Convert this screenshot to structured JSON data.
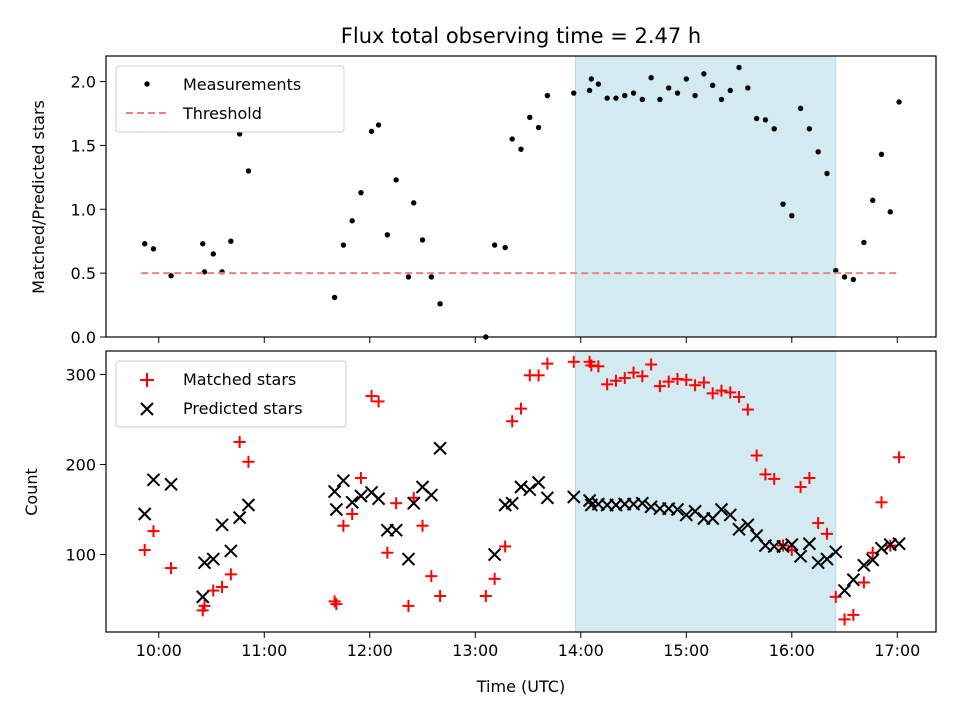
{
  "chart_data": [
    {
      "type": "scatter",
      "title": "Flux total observing time = 2.47 h",
      "ylabel": "Matched/Predicted stars",
      "xlabel": "",
      "xlim": [
        "09:30",
        "17:22"
      ],
      "ylim": [
        0,
        2.2
      ],
      "yticks": [
        "0.0",
        "0.5",
        "1.0",
        "1.5",
        "2.0"
      ],
      "xticks": [
        "10:00",
        "11:00",
        "12:00",
        "13:00",
        "14:00",
        "15:00",
        "16:00",
        "17:00"
      ],
      "shaded_interval": {
        "start": "13:57",
        "end": "16:25",
        "color": "#d4eaf1"
      },
      "legend_position": "upper left",
      "series": [
        {
          "name": "Measurements",
          "marker": "dot",
          "color": "#000000",
          "points": [
            [
              "09:52",
              0.73
            ],
            [
              "09:57",
              0.69
            ],
            [
              "10:07",
              0.48
            ],
            [
              "10:25",
              0.73
            ],
            [
              "10:26",
              0.51
            ],
            [
              "10:31",
              0.65
            ],
            [
              "10:36",
              0.51
            ],
            [
              "10:41",
              0.75
            ],
            [
              "10:46",
              1.59
            ],
            [
              "10:51",
              1.3
            ],
            [
              "11:40",
              0.31
            ],
            [
              "11:45",
              0.72
            ],
            [
              "11:50",
              0.91
            ],
            [
              "11:55",
              1.13
            ],
            [
              "12:01",
              1.61
            ],
            [
              "12:05",
              1.66
            ],
            [
              "12:10",
              0.8
            ],
            [
              "12:15",
              1.23
            ],
            [
              "12:22",
              0.47
            ],
            [
              "12:25",
              1.05
            ],
            [
              "12:30",
              0.76
            ],
            [
              "12:35",
              0.47
            ],
            [
              "12:40",
              0.26
            ],
            [
              "13:06",
              0.0
            ],
            [
              "13:11",
              0.72
            ],
            [
              "13:17",
              0.7
            ],
            [
              "13:21",
              1.55
            ],
            [
              "13:26",
              1.47
            ],
            [
              "13:31",
              1.72
            ],
            [
              "13:36",
              1.64
            ],
            [
              "13:41",
              1.89
            ],
            [
              "13:56",
              1.91
            ],
            [
              "14:05",
              1.93
            ],
            [
              "14:06",
              2.02
            ],
            [
              "14:10",
              1.98
            ],
            [
              "14:15",
              1.87
            ],
            [
              "14:20",
              1.87
            ],
            [
              "14:25",
              1.89
            ],
            [
              "14:30",
              1.91
            ],
            [
              "14:35",
              1.86
            ],
            [
              "14:40",
              2.03
            ],
            [
              "14:45",
              1.86
            ],
            [
              "14:50",
              1.95
            ],
            [
              "14:55",
              1.91
            ],
            [
              "15:00",
              2.02
            ],
            [
              "15:05",
              1.89
            ],
            [
              "15:10",
              2.06
            ],
            [
              "15:15",
              1.97
            ],
            [
              "15:20",
              1.86
            ],
            [
              "15:25",
              1.93
            ],
            [
              "15:30",
              2.11
            ],
            [
              "15:35",
              1.95
            ],
            [
              "15:40",
              1.71
            ],
            [
              "15:45",
              1.7
            ],
            [
              "15:50",
              1.63
            ],
            [
              "15:55",
              1.04
            ],
            [
              "16:00",
              0.95
            ],
            [
              "16:05",
              1.79
            ],
            [
              "16:10",
              1.63
            ],
            [
              "16:15",
              1.45
            ],
            [
              "16:20",
              1.28
            ],
            [
              "16:25",
              0.52
            ],
            [
              "16:30",
              0.47
            ],
            [
              "16:35",
              0.45
            ],
            [
              "16:41",
              0.74
            ],
            [
              "16:46",
              1.07
            ],
            [
              "16:51",
              1.43
            ],
            [
              "16:56",
              0.98
            ],
            [
              "17:01",
              1.84
            ]
          ]
        },
        {
          "name": "Threshold",
          "marker": "dashed-line",
          "color": "#f08080",
          "points": [
            [
              "09:50",
              0.5
            ],
            [
              "17:01",
              0.5
            ]
          ]
        }
      ]
    },
    {
      "type": "scatter",
      "title": "",
      "ylabel": "Count",
      "xlabel": "Time (UTC)",
      "xlim": [
        "09:30",
        "17:22"
      ],
      "ylim": [
        14,
        326
      ],
      "yticks": [
        "100",
        "200",
        "300"
      ],
      "xticks": [
        "10:00",
        "11:00",
        "12:00",
        "13:00",
        "14:00",
        "15:00",
        "16:00",
        "17:00"
      ],
      "shaded_interval": {
        "start": "13:57",
        "end": "16:25",
        "color": "#d4eaf1"
      },
      "legend_position": "upper left",
      "series": [
        {
          "name": "Matched stars",
          "marker": "plus",
          "color": "#ff0000",
          "points": [
            [
              "09:52",
              105
            ],
            [
              "09:57",
              126
            ],
            [
              "10:07",
              85
            ],
            [
              "10:25",
              38
            ],
            [
              "10:26",
              43
            ],
            [
              "10:31",
              60
            ],
            [
              "10:36",
              64
            ],
            [
              "10:41",
              78
            ],
            [
              "10:46",
              225
            ],
            [
              "10:51",
              203
            ],
            [
              "11:40",
              48
            ],
            [
              "11:41",
              45
            ],
            [
              "11:45",
              132
            ],
            [
              "11:50",
              145
            ],
            [
              "11:55",
              185
            ],
            [
              "12:01",
              276
            ],
            [
              "12:05",
              270
            ],
            [
              "12:10",
              102
            ],
            [
              "12:15",
              157
            ],
            [
              "12:22",
              43
            ],
            [
              "12:25",
              163
            ],
            [
              "12:30",
              132
            ],
            [
              "12:35",
              76
            ],
            [
              "12:40",
              54
            ],
            [
              "13:06",
              54
            ],
            [
              "13:11",
              73
            ],
            [
              "13:17",
              109
            ],
            [
              "13:21",
              248
            ],
            [
              "13:26",
              262
            ],
            [
              "13:31",
              299
            ],
            [
              "13:36",
              299
            ],
            [
              "13:41",
              312
            ],
            [
              "13:56",
              314
            ],
            [
              "14:05",
              314
            ],
            [
              "14:06",
              310
            ],
            [
              "14:10",
              309
            ],
            [
              "14:15",
              289
            ],
            [
              "14:20",
              293
            ],
            [
              "14:25",
              296
            ],
            [
              "14:30",
              302
            ],
            [
              "14:35",
              298
            ],
            [
              "14:40",
              311
            ],
            [
              "14:45",
              287
            ],
            [
              "14:50",
              292
            ],
            [
              "14:55",
              295
            ],
            [
              "15:00",
              294
            ],
            [
              "15:05",
              288
            ],
            [
              "15:10",
              291
            ],
            [
              "15:15",
              279
            ],
            [
              "15:20",
              282
            ],
            [
              "15:25",
              280
            ],
            [
              "15:30",
              275
            ],
            [
              "15:35",
              261
            ],
            [
              "15:40",
              210
            ],
            [
              "15:45",
              189
            ],
            [
              "15:50",
              184
            ],
            [
              "15:55",
              110
            ],
            [
              "16:00",
              105
            ],
            [
              "16:05",
              175
            ],
            [
              "16:10",
              185
            ],
            [
              "16:15",
              135
            ],
            [
              "16:20",
              123
            ],
            [
              "16:25",
              53
            ],
            [
              "16:30",
              28
            ],
            [
              "16:35",
              33
            ],
            [
              "16:41",
              69
            ],
            [
              "16:46",
              102
            ],
            [
              "16:51",
              158
            ],
            [
              "16:56",
              110
            ],
            [
              "17:01",
              208
            ]
          ]
        },
        {
          "name": "Predicted stars",
          "marker": "x",
          "color": "#000000",
          "points": [
            [
              "09:52",
              145
            ],
            [
              "09:57",
              183
            ],
            [
              "10:07",
              178
            ],
            [
              "10:25",
              53
            ],
            [
              "10:26",
              91
            ],
            [
              "10:31",
              95
            ],
            [
              "10:36",
              133
            ],
            [
              "10:41",
              104
            ],
            [
              "10:46",
              141
            ],
            [
              "10:51",
              155
            ],
            [
              "11:40",
              170
            ],
            [
              "11:41",
              150
            ],
            [
              "11:45",
              182
            ],
            [
              "11:50",
              158
            ],
            [
              "11:55",
              165
            ],
            [
              "12:01",
              169
            ],
            [
              "12:05",
              162
            ],
            [
              "12:10",
              127
            ],
            [
              "12:15",
              127
            ],
            [
              "12:22",
              95
            ],
            [
              "12:25",
              157
            ],
            [
              "12:30",
              175
            ],
            [
              "12:35",
              166
            ],
            [
              "12:40",
              218
            ],
            [
              "13:11",
              100
            ],
            [
              "13:17",
              155
            ],
            [
              "13:21",
              157
            ],
            [
              "13:26",
              175
            ],
            [
              "13:31",
              172
            ],
            [
              "13:36",
              180
            ],
            [
              "13:41",
              163
            ],
            [
              "13:56",
              164
            ],
            [
              "14:05",
              160
            ],
            [
              "14:06",
              155
            ],
            [
              "14:10",
              156
            ],
            [
              "14:15",
              155
            ],
            [
              "14:20",
              155
            ],
            [
              "14:25",
              156
            ],
            [
              "14:30",
              156
            ],
            [
              "14:35",
              157
            ],
            [
              "14:40",
              153
            ],
            [
              "14:45",
              151
            ],
            [
              "14:50",
              151
            ],
            [
              "14:55",
              150
            ],
            [
              "15:00",
              144
            ],
            [
              "15:05",
              148
            ],
            [
              "15:10",
              140
            ],
            [
              "15:15",
              140
            ],
            [
              "15:20",
              150
            ],
            [
              "15:25",
              144
            ],
            [
              "15:30",
              128
            ],
            [
              "15:35",
              133
            ],
            [
              "15:40",
              121
            ],
            [
              "15:45",
              110
            ],
            [
              "15:50",
              109
            ],
            [
              "15:55",
              109
            ],
            [
              "16:00",
              111
            ],
            [
              "16:05",
              98
            ],
            [
              "16:10",
              112
            ],
            [
              "16:15",
              91
            ],
            [
              "16:20",
              95
            ],
            [
              "16:25",
              103
            ],
            [
              "16:30",
              60
            ],
            [
              "16:35",
              72
            ],
            [
              "16:41",
              88
            ],
            [
              "16:46",
              94
            ],
            [
              "16:51",
              107
            ],
            [
              "16:56",
              111
            ],
            [
              "17:01",
              112
            ]
          ]
        }
      ]
    }
  ]
}
